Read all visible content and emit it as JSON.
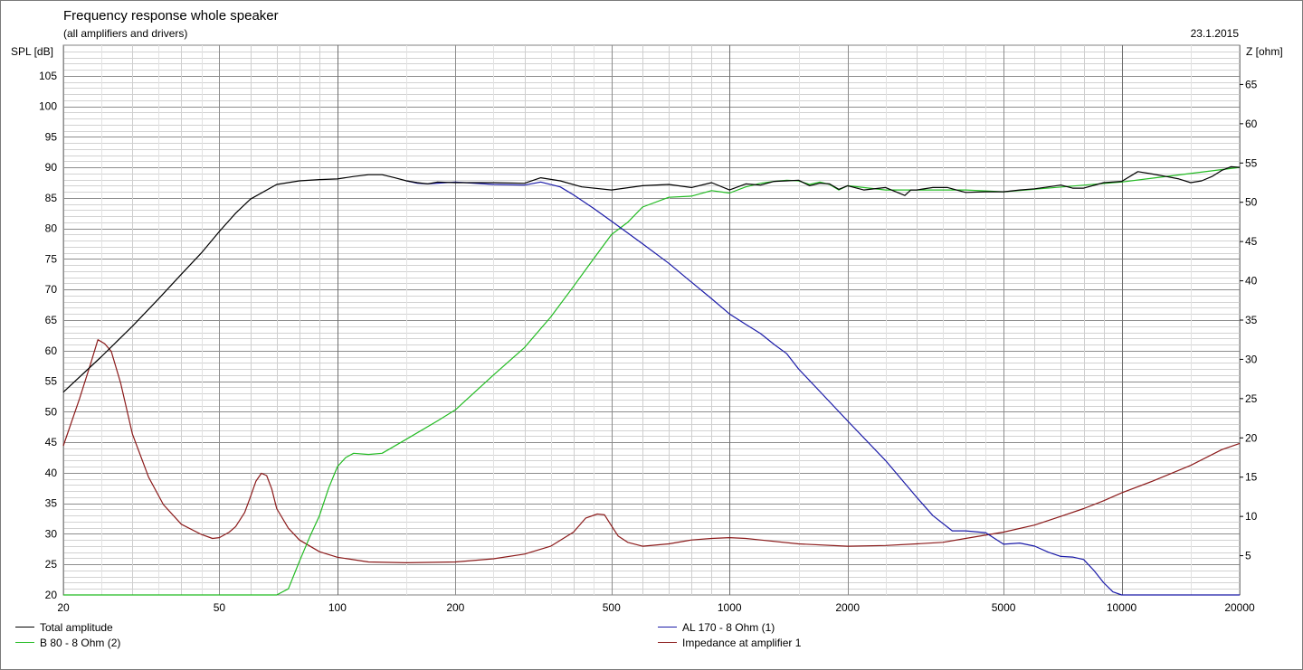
{
  "chart_data": {
    "type": "line",
    "title": "Frequency response whole speaker",
    "subtitle": "(all amplifiers and drivers)",
    "date": "23.1.2015",
    "ylabel": "SPL [dB]",
    "y2label": "Z [ohm]",
    "x_scale": "log",
    "xlim": [
      20,
      20000
    ],
    "ylim": [
      20,
      110
    ],
    "y2lim": [
      0,
      70
    ],
    "x_ticks": [
      "20",
      "50",
      "100",
      "200",
      "500",
      "1000",
      "2000",
      "5000",
      "10000",
      "20000"
    ],
    "y_ticks": [
      "20",
      "25",
      "30",
      "35",
      "40",
      "45",
      "50",
      "55",
      "60",
      "65",
      "70",
      "75",
      "80",
      "85",
      "90",
      "95",
      "100",
      "105"
    ],
    "y2_ticks": [
      "5",
      "10",
      "15",
      "20",
      "25",
      "30",
      "35",
      "40",
      "45",
      "50",
      "55",
      "60",
      "65"
    ],
    "grid": true,
    "legend_position": "bottom",
    "series": [
      {
        "name": "Total amplitude",
        "color": "#000000",
        "axis": "left",
        "x": [
          20,
          25,
          30,
          35,
          40,
          45,
          50,
          55,
          60,
          70,
          80,
          90,
          100,
          110,
          120,
          130,
          140,
          150,
          160,
          170,
          180,
          200,
          250,
          300,
          330,
          370,
          420,
          500,
          600,
          700,
          800,
          900,
          1000,
          1100,
          1200,
          1300,
          1400,
          1500,
          1600,
          1700,
          1800,
          1900,
          2000,
          2200,
          2500,
          2800,
          2900,
          3000,
          3300,
          3600,
          4000,
          4500,
          5000,
          5500,
          6000,
          6500,
          7000,
          7500,
          8000,
          9000,
          10000,
          11000,
          12000,
          13000,
          14000,
          15000,
          16000,
          17000,
          18000,
          19000,
          20000
        ],
        "y": [
          53.2,
          59,
          64,
          68.5,
          72.5,
          76,
          79.5,
          82.5,
          84.8,
          87.2,
          87.8,
          88,
          88.1,
          88.5,
          88.8,
          88.8,
          88.3,
          87.8,
          87.5,
          87.3,
          87.6,
          87.5,
          87.5,
          87.4,
          88.3,
          87.8,
          86.8,
          86.3,
          87,
          87.2,
          86.7,
          87.5,
          86.3,
          87.3,
          87.1,
          87.7,
          87.8,
          87.9,
          87,
          87.4,
          87.3,
          86.4,
          87,
          86.3,
          86.7,
          85.4,
          86.3,
          86.3,
          86.7,
          86.7,
          85.9,
          86,
          86,
          86.3,
          86.5,
          86.8,
          87.1,
          86.6,
          86.6,
          87.5,
          87.7,
          89.3,
          88.9,
          88.5,
          88.1,
          87.5,
          87.8,
          88.5,
          89.5,
          90.1,
          90
        ]
      },
      {
        "name": "AL 170 - 8 Ohm (1)",
        "color": "#1a1aa8",
        "axis": "left",
        "x": [
          150,
          160,
          170,
          200,
          250,
          300,
          330,
          370,
          400,
          450,
          500,
          600,
          700,
          800,
          900,
          1000,
          1100,
          1200,
          1300,
          1400,
          1500,
          1700,
          2000,
          2500,
          3000,
          3300,
          3700,
          4000,
          4500,
          5000,
          5500,
          6000,
          6500,
          7000,
          7500,
          8000,
          8500,
          9000,
          9500,
          10000,
          12000,
          15000,
          20000
        ],
        "y": [
          87.8,
          87.4,
          87.3,
          87.6,
          87.2,
          87.1,
          87.6,
          86.8,
          85.5,
          83.3,
          81.2,
          77.5,
          74.3,
          71.2,
          68.5,
          66,
          64.3,
          62.8,
          61,
          59.5,
          57,
          53.3,
          48.5,
          42,
          36,
          33,
          30.5,
          30.5,
          30.2,
          28.3,
          28.5,
          28,
          27,
          26.3,
          26.2,
          25.8,
          24,
          22,
          20.5,
          20,
          20,
          20,
          20
        ]
      },
      {
        "name": "B 80 - 8 Ohm (2)",
        "color": "#22bb22",
        "axis": "left",
        "x": [
          20,
          50,
          70,
          75,
          80,
          85,
          90,
          95,
          100,
          105,
          110,
          120,
          130,
          150,
          180,
          200,
          250,
          300,
          350,
          400,
          450,
          500,
          550,
          600,
          700,
          800,
          900,
          1000,
          1100,
          1200,
          1300,
          1400,
          1500,
          1600,
          1700,
          1800,
          1900,
          2000,
          2500,
          3000,
          4000,
          5000,
          10000,
          20000
        ],
        "y": [
          20,
          20,
          20,
          21,
          25.5,
          29.5,
          33,
          37.5,
          41,
          42.5,
          43.2,
          43,
          43.2,
          45.5,
          48.5,
          50.3,
          56,
          60.5,
          65.5,
          70.5,
          75,
          79,
          81,
          83.5,
          85.1,
          85.3,
          86.2,
          85.8,
          86.8,
          87.4,
          87.7,
          87.9,
          87.8,
          87.2,
          87.6,
          87.2,
          86.3,
          87,
          86.3,
          86.3,
          86.3,
          86,
          87.6,
          90
        ]
      },
      {
        "name": "Impedance at amplifier 1",
        "color": "#8b1a1a",
        "axis": "right",
        "x": [
          20,
          22,
          23.5,
          24.5,
          25.5,
          26.5,
          28,
          30,
          33,
          36,
          40,
          45,
          48,
          50,
          53,
          55,
          58,
          60,
          62,
          64,
          66,
          68,
          70,
          75,
          80,
          90,
          100,
          120,
          150,
          200,
          250,
          300,
          350,
          400,
          430,
          460,
          480,
          500,
          520,
          550,
          600,
          700,
          800,
          900,
          1000,
          1100,
          1200,
          1500,
          2000,
          2500,
          3000,
          3500,
          4000,
          5000,
          6000,
          7000,
          8000,
          9000,
          10000,
          12000,
          15000,
          18000,
          20000
        ],
        "y": [
          19,
          25,
          29.5,
          32.5,
          32,
          31,
          27,
          20.5,
          15,
          11.5,
          9,
          7.7,
          7.2,
          7.3,
          8,
          8.7,
          10.5,
          12.5,
          14.5,
          15.5,
          15.2,
          13.5,
          11,
          8.5,
          7,
          5.5,
          4.8,
          4.2,
          4.1,
          4.2,
          4.6,
          5.2,
          6.2,
          8,
          9.8,
          10.3,
          10.2,
          8.8,
          7.5,
          6.7,
          6.2,
          6.5,
          7,
          7.2,
          7.3,
          7.2,
          7,
          6.5,
          6.2,
          6.3,
          6.5,
          6.7,
          7.2,
          8,
          8.9,
          10,
          11,
          12,
          13,
          14.5,
          16.5,
          18.5,
          19.3
        ]
      }
    ]
  }
}
